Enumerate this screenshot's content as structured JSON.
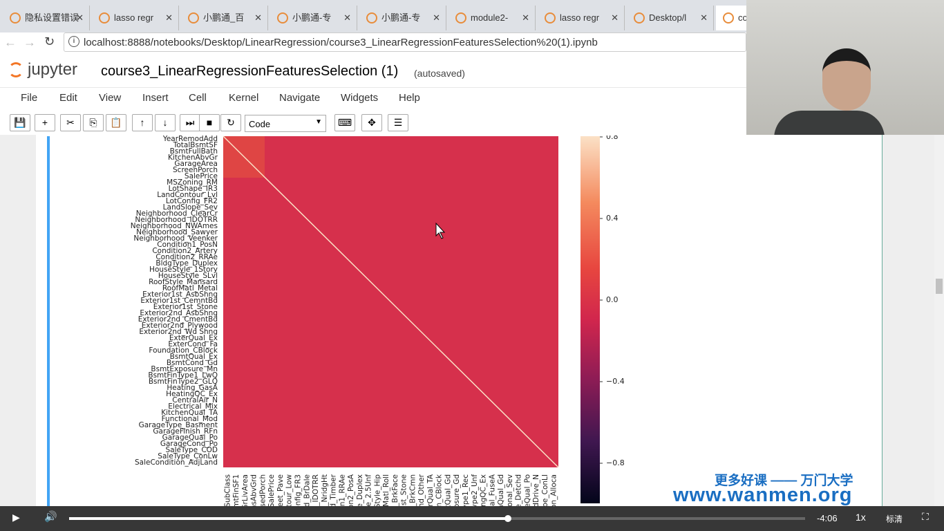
{
  "browser": {
    "tabs": [
      "隐私设置错误",
      "lasso regr",
      "小鹏通_百",
      "小鹏通-专",
      "小鹏通-专",
      "module2-",
      "lasso regr",
      "Desktop/l",
      "co"
    ],
    "url": "localhost:8888/notebooks/Desktop/LinearRegression/course3_LinearRegressionFeaturesSelection%20(1).ipynb"
  },
  "jupyter": {
    "logo": "jupyter",
    "notebook_title": "course3_LinearRegressionFeaturesSelection (1)",
    "status": "(autosaved)",
    "menu": [
      "File",
      "Edit",
      "View",
      "Insert",
      "Cell",
      "Kernel",
      "Navigate",
      "Widgets",
      "Help"
    ],
    "cell_type": "Code"
  },
  "heatmap": {
    "y_labels": [
      "YearRemodAdd",
      "TotalBsmtSF",
      "BsmtFullBath",
      "KitchenAbvGr",
      "GarageArea",
      "ScreenPorch",
      "SalePrice",
      "MSZoning_RM",
      "LotShape_IR3",
      "LandContour_Lvl",
      "LotConfig_FR2",
      "LandSlope_Sev",
      "Neighborhood_ClearCr",
      "Neighborhood_IDOTRR",
      "Neighborhood_NWAmes",
      "Neighborhood_Sawyer",
      "Neighborhood_Veenker",
      "Condition1_PosN",
      "Condition2_Artery",
      "Condition2_RRAe",
      "BldgType_Duplex",
      "HouseStyle_1Story",
      "HouseStyle_SLvl",
      "RoofStyle_Mansard",
      "RoofMatl_Metal",
      "Exterior1st_AsbShng",
      "Exterior1st_CemntBd",
      "Exterior1st_Stone",
      "Exterior2nd_AsbShng",
      "Exterior2nd_CmentBd",
      "Exterior2nd_Plywood",
      "Exterior2nd_Wd Shng",
      "ExterQual_Ex",
      "ExterCond_Fa",
      "Foundation_CBlock",
      "BsmtQual_Ex",
      "BsmtCond_Gd",
      "BsmtExposure_Mn",
      "BsmtFinType1_LwQ",
      "BsmtFinType2_GLQ",
      "Heating_GasA",
      "HeatingQC_Ex",
      "CentralAir_N",
      "Electrical_Mix",
      "KitchenQual_TA",
      "Functional_Mod",
      "GarageType_Basment",
      "GarageFinish_RFn",
      "GarageQual_Po",
      "GarageCond_Po",
      "SaleType_COD",
      "SaleType_ConLw",
      "SaleCondition_AdjLand"
    ],
    "x_labels": [
      "MSSubClass",
      "mtFinSF1",
      "GrLivArea",
      "rdRmsAbvGrd",
      "nclosedPorch",
      "SalePrice",
      "Street_Pave",
      "dContour_Low",
      "Config_FR3",
      "ood_BrDale",
      "od_IDOTRR",
      "d_NridgHt",
      "ood_Timber",
      "tion1_RRAe",
      "tion2_PosA",
      "Type_Duplex",
      "tyle_2.5Unf",
      "fStyle_Hip",
      "RoofMatl_Roll",
      "r1st_BrkFace",
      "1st_Stone",
      "Type_BrkCmn",
      "nd_Other",
      "erQual_TA",
      "tion_CBlock",
      "smtQual_Gd",
      "posure_Gd",
      "Type1_Rec",
      "Type2_Unf",
      "tingQC_Ex",
      "ical_FuseA",
      "enQual_Gd",
      "tional_Sev",
      "Type_Detchd",
      "rageQual_Po",
      "vedDrive_N",
      "Type_ConLI",
      "ntion_Alloca"
    ],
    "colorbar_ticks": [
      "0.8",
      "0.4",
      "0.0",
      "−0.4",
      "−0.8"
    ]
  },
  "video": {
    "time": "-4:06",
    "speed": "1x",
    "quality": "标清"
  },
  "watermark": {
    "slogan": "更多好课 —— 万门大学",
    "site": "www.wanmen.org"
  }
}
